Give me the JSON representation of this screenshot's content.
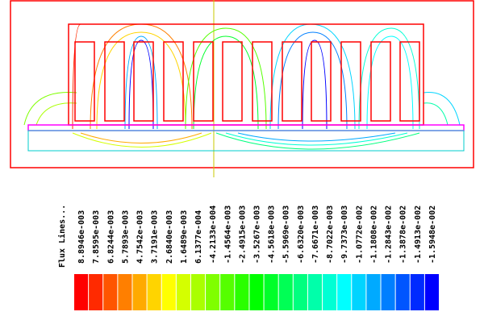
{
  "legend": {
    "title": "Flux Lines...",
    "labels": [
      "8.8946e-003",
      "7.8595e-003",
      "6.8244e-003",
      "5.7893e-003",
      "4.7542e-003",
      "3.7191e-003",
      "2.6840e-003",
      "1.6489e-003",
      "6.1377e-004",
      "-4.2133e-004",
      "-1.4564e-003",
      "-2.4915e-003",
      "-3.5267e-003",
      "-4.5618e-003",
      "-5.5969e-003",
      "-6.6320e-003",
      "-7.6671e-003",
      "-8.7022e-003",
      "-9.7373e-003",
      "-1.0772e-002",
      "-1.1808e-002",
      "-1.2843e-002",
      "-1.3878e-002",
      "-1.4913e-002",
      "-1.5948e-002"
    ],
    "colors": [
      "#ff0000",
      "#ff2a00",
      "#ff5500",
      "#ff7f00",
      "#ffaa00",
      "#ffd400",
      "#ffff00",
      "#d4ff00",
      "#aaff00",
      "#7fff00",
      "#55ff00",
      "#2aff00",
      "#00ff00",
      "#00ff2a",
      "#00ff55",
      "#00ff7f",
      "#00ffaa",
      "#00ffd4",
      "#00ffff",
      "#00d4ff",
      "#00aaff",
      "#007fff",
      "#0055ff",
      "#002aff",
      "#0000ff"
    ]
  }
}
